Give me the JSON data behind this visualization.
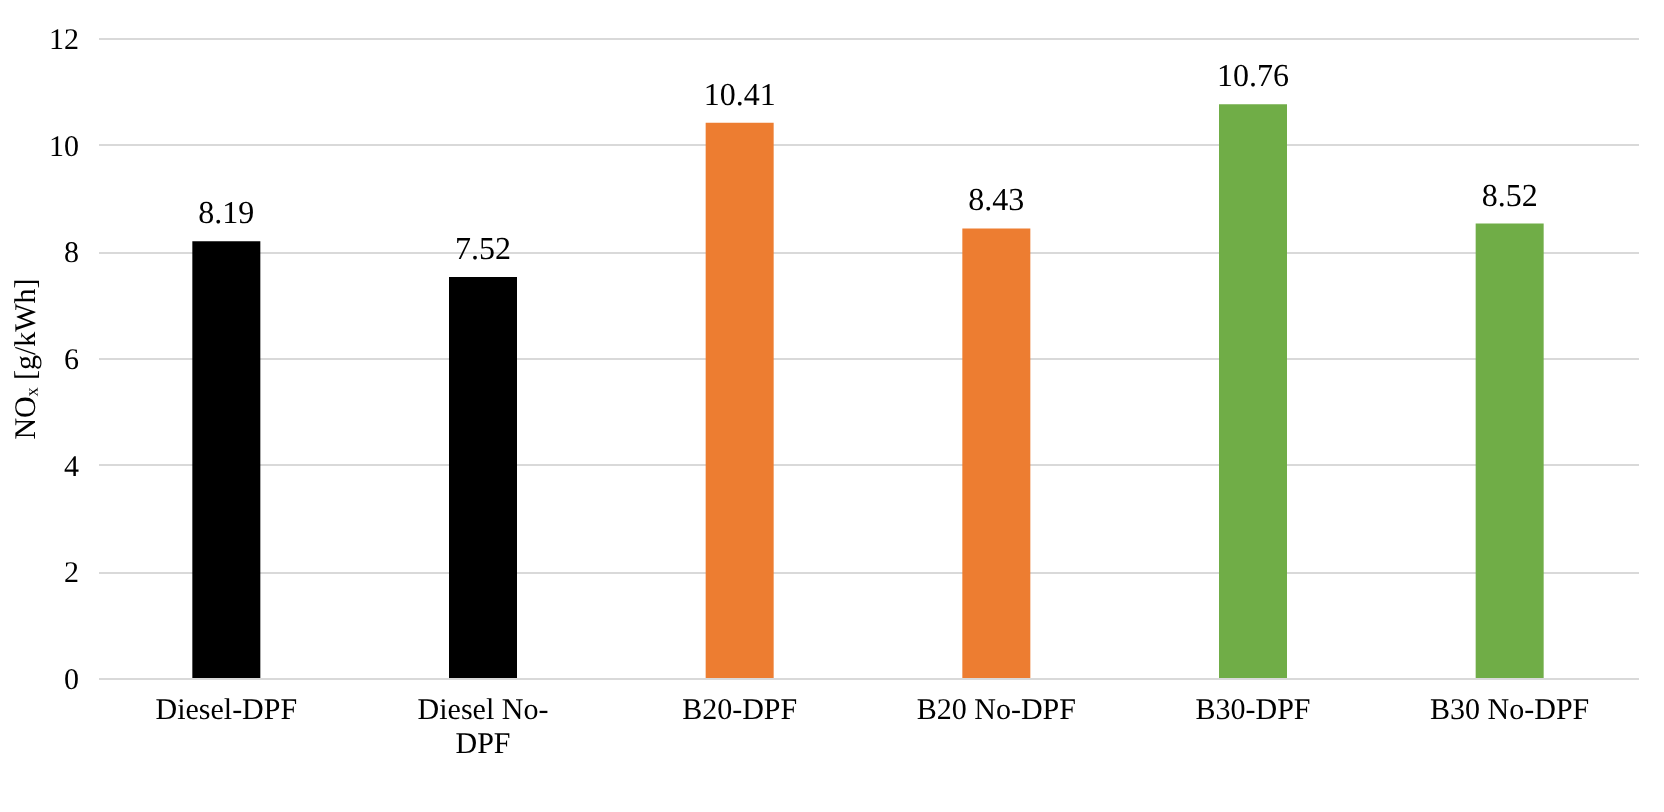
{
  "chart_data": {
    "type": "bar",
    "ylabel": "NOₓ [g/kWh]",
    "categories": [
      "Diesel-DPF",
      "Diesel No-DPF",
      "B20-DPF",
      "B20 No-DPF",
      "B30-DPF",
      "B30 No-DPF"
    ],
    "values": [
      8.19,
      7.52,
      10.41,
      8.43,
      10.76,
      8.52
    ],
    "colors": [
      "#000000",
      "#000000",
      "#ed7d31",
      "#ed7d31",
      "#70ad47",
      "#70ad47"
    ],
    "ylim": [
      0,
      12
    ],
    "yticks": [
      0,
      2,
      4,
      6,
      8,
      10,
      12
    ],
    "grid": "y",
    "data_labels": true
  }
}
